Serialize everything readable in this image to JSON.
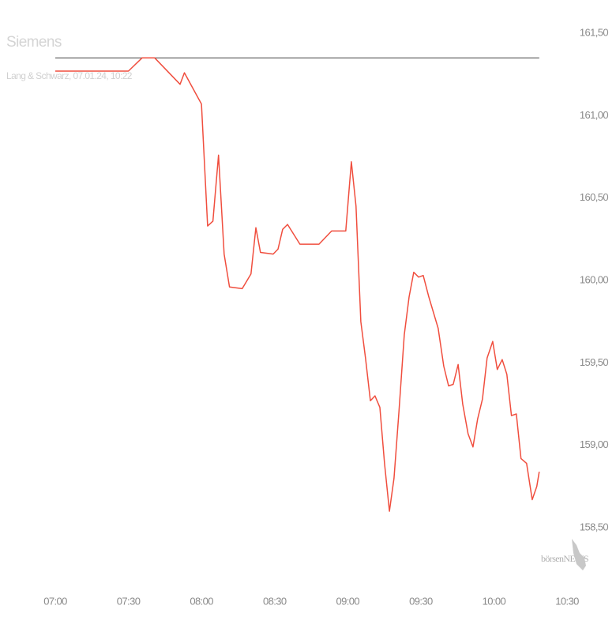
{
  "chart_data": {
    "type": "line",
    "title": "Siemens",
    "subtitle": "Lang & Schwarz, 07.01.24, 10:22",
    "watermark": "börsenNEWS",
    "x": [
      420,
      450,
      455.6,
      460.8,
      471.2,
      473,
      480,
      482.5,
      484.7,
      487,
      489.3,
      491.5,
      496.7,
      500.3,
      502.3,
      504.2,
      509.4,
      511.4,
      513.3,
      515.3,
      520.4,
      528.2,
      533.4,
      539.2,
      541.5,
      543.4,
      545.4,
      547.3,
      549.3,
      551.2,
      553.2,
      555.1,
      557.1,
      559,
      561,
      563.2,
      565.2,
      567.1,
      569.1,
      571,
      573.3,
      577.1,
      579.4,
      581.4,
      583.3,
      585.3,
      587.2,
      589.4,
      591.4,
      593.3,
      595.3,
      597.2,
      599.5,
      601.4,
      603.4,
      605.3,
      607.2,
      609.2,
      611.1,
      613.4,
      615.7,
      617.6,
      618.6
    ],
    "series": [
      {
        "name": "Siemens",
        "color": "#f04e3e",
        "values": [
          161.27,
          161.27,
          161.35,
          161.35,
          161.19,
          161.26,
          161.07,
          160.33,
          160.36,
          160.76,
          160.16,
          159.96,
          159.95,
          160.04,
          160.32,
          160.17,
          160.16,
          160.19,
          160.31,
          160.34,
          160.22,
          160.22,
          160.3,
          160.3,
          160.72,
          160.45,
          159.75,
          159.53,
          159.27,
          159.3,
          159.23,
          158.89,
          158.6,
          158.8,
          159.2,
          159.67,
          159.9,
          160.05,
          160.02,
          160.03,
          159.9,
          159.71,
          159.48,
          159.36,
          159.37,
          159.49,
          159.25,
          159.07,
          158.99,
          159.16,
          159.28,
          159.53,
          159.63,
          159.46,
          159.52,
          159.43,
          159.18,
          159.19,
          158.92,
          158.89,
          158.67,
          158.75,
          158.84
        ]
      }
    ],
    "reference_line": 161.35,
    "reference_color": "#444444",
    "xlim": [
      420,
      630
    ],
    "xticks": [
      {
        "value": 420,
        "label": "07:00"
      },
      {
        "value": 450,
        "label": "07:30"
      },
      {
        "value": 480,
        "label": "08:00"
      },
      {
        "value": 510,
        "label": "08:30"
      },
      {
        "value": 540,
        "label": "09:00"
      },
      {
        "value": 570,
        "label": "09:30"
      },
      {
        "value": 600,
        "label": "10:00"
      },
      {
        "value": 630,
        "label": "10:30"
      }
    ],
    "ylim": [
      158.5,
      161.5
    ],
    "yticks": [
      {
        "value": 158.5,
        "label": "158,50"
      },
      {
        "value": 159,
        "label": "159,00"
      },
      {
        "value": 159.5,
        "label": "159,50"
      },
      {
        "value": 160,
        "label": "160,00"
      },
      {
        "value": 160.5,
        "label": "160,50"
      },
      {
        "value": 161,
        "label": "161,00"
      },
      {
        "value": 161.5,
        "label": "161,50"
      }
    ],
    "grid": false
  }
}
